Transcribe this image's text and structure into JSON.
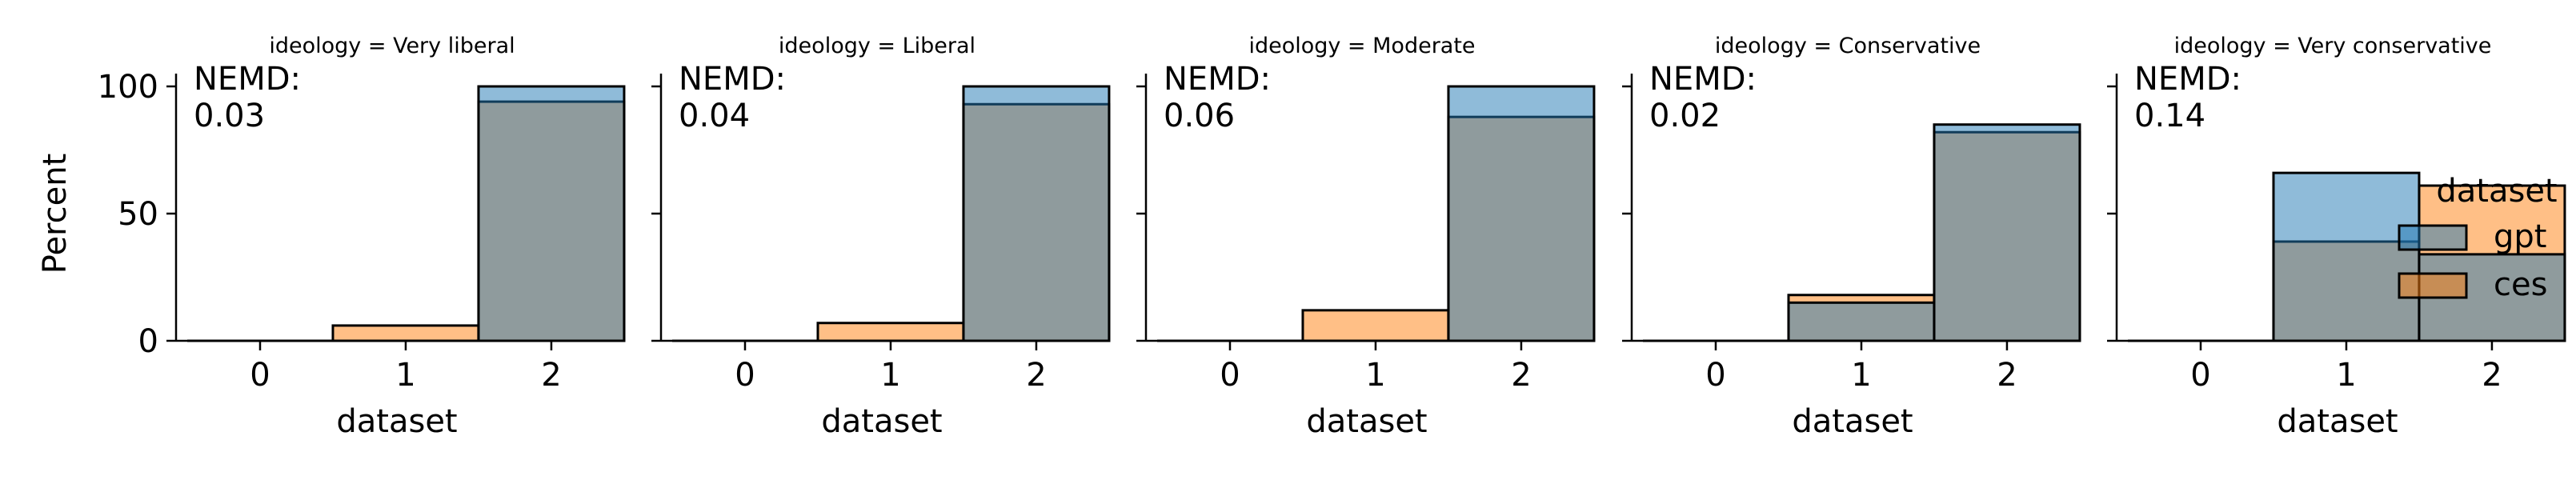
{
  "chart_data": {
    "type": "bar",
    "layout": "facet-grid 1x5, overlaid histograms",
    "xlabel": "dataset",
    "ylabel": "Percent",
    "ylim": [
      0,
      100
    ],
    "yticks": [
      0,
      50,
      100
    ],
    "xticks": [
      0,
      1,
      2
    ],
    "categories": [
      0,
      1,
      2
    ],
    "grid": false,
    "colors": {
      "gpt": "#1f77b4",
      "ces": "#ff7f0e",
      "overlap": "#8c979d"
    },
    "bar_alpha": 0.5,
    "legend": {
      "title": "dataset",
      "position": "right",
      "entries": [
        {
          "name": "gpt",
          "color": "#1f77b4"
        },
        {
          "name": "ces",
          "color": "#ff7f0e"
        }
      ]
    },
    "panels": [
      {
        "title": "ideology = Very liberal",
        "annotation_label": "NEMD:",
        "annotation_value": "0.03",
        "series": [
          {
            "name": "gpt",
            "values": [
              0,
              0,
              100
            ]
          },
          {
            "name": "ces",
            "values": [
              0,
              6,
              94
            ]
          }
        ]
      },
      {
        "title": "ideology = Liberal",
        "annotation_label": "NEMD:",
        "annotation_value": "0.04",
        "series": [
          {
            "name": "gpt",
            "values": [
              0,
              0,
              100
            ]
          },
          {
            "name": "ces",
            "values": [
              0,
              7,
              93
            ]
          }
        ]
      },
      {
        "title": "ideology = Moderate",
        "annotation_label": "NEMD:",
        "annotation_value": "0.06",
        "series": [
          {
            "name": "gpt",
            "values": [
              0,
              0,
              100
            ]
          },
          {
            "name": "ces",
            "values": [
              0,
              12,
              88
            ]
          }
        ]
      },
      {
        "title": "ideology = Conservative",
        "annotation_label": "NEMD:",
        "annotation_value": "0.02",
        "series": [
          {
            "name": "gpt",
            "values": [
              0,
              15,
              85
            ]
          },
          {
            "name": "ces",
            "values": [
              0,
              18,
              82
            ]
          }
        ]
      },
      {
        "title": "ideology = Very conservative",
        "annotation_label": "NEMD:",
        "annotation_value": "0.14",
        "series": [
          {
            "name": "gpt",
            "values": [
              0,
              66,
              34
            ]
          },
          {
            "name": "ces",
            "values": [
              0,
              39,
              61
            ]
          }
        ]
      }
    ]
  }
}
